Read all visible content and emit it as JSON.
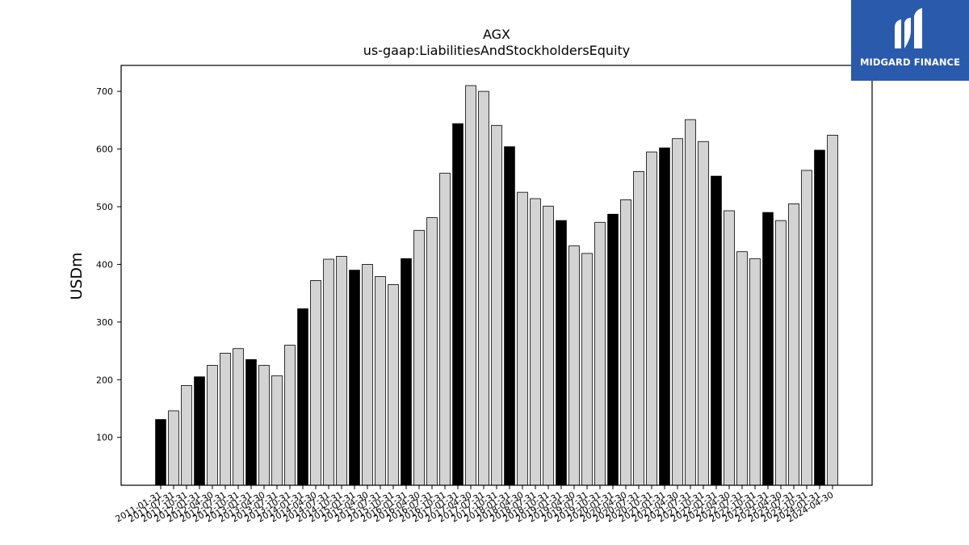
{
  "chart_data": {
    "type": "bar",
    "title": "AGX",
    "subtitle": "us-gaap:LiabilitiesAndStockholdersEquity",
    "xlabel": "",
    "ylabel": "USDm",
    "ylim": [
      17,
      745
    ],
    "yticks": [
      100,
      200,
      300,
      400,
      500,
      600,
      700
    ],
    "grid": false,
    "legend": "none",
    "colors": {
      "annual": "#000000",
      "quarter": "#d3d3d3",
      "edge": "#000000"
    },
    "categories": [
      "2011-01-31",
      "2011-07-31",
      "2011-10-31",
      "2012-01-31",
      "2012-04-30",
      "2012-07-31",
      "2012-10-31",
      "2013-01-31",
      "2013-04-30",
      "2013-07-31",
      "2013-10-31",
      "2014-01-31",
      "2014-04-30",
      "2014-07-31",
      "2014-10-31",
      "2015-01-31",
      "2015-04-30",
      "2015-07-31",
      "2015-10-31",
      "2016-01-31",
      "2016-04-30",
      "2016-07-31",
      "2016-10-31",
      "2017-01-31",
      "2017-04-30",
      "2017-07-31",
      "2017-10-31",
      "2018-01-31",
      "2018-04-30",
      "2018-07-31",
      "2018-10-31",
      "2019-01-31",
      "2019-04-30",
      "2019-07-31",
      "2019-10-31",
      "2020-01-31",
      "2020-04-30",
      "2020-07-31",
      "2020-10-31",
      "2021-01-31",
      "2021-04-30",
      "2021-07-31",
      "2021-10-31",
      "2022-01-31",
      "2022-04-30",
      "2022-07-31",
      "2022-10-31",
      "2023-01-31",
      "2023-04-30",
      "2023-07-31",
      "2023-10-31",
      "2024-01-31",
      "2024-04-30"
    ],
    "values": [
      131,
      146,
      190,
      205,
      225,
      246,
      254,
      235,
      225,
      207,
      260,
      323,
      372,
      409,
      414,
      390,
      400,
      379,
      365,
      410,
      459,
      481,
      558,
      644,
      710,
      700,
      641,
      604,
      525,
      514,
      501,
      476,
      432,
      419,
      473,
      487,
      512,
      561,
      595,
      602,
      618,
      651,
      613,
      553,
      493,
      422,
      410,
      490,
      476,
      505,
      563,
      598,
      624
    ],
    "annual": [
      true,
      false,
      false,
      true,
      false,
      false,
      false,
      true,
      false,
      false,
      false,
      true,
      false,
      false,
      false,
      true,
      false,
      false,
      false,
      true,
      false,
      false,
      false,
      true,
      false,
      false,
      false,
      true,
      false,
      false,
      false,
      true,
      false,
      false,
      false,
      true,
      false,
      false,
      false,
      true,
      false,
      false,
      false,
      true,
      false,
      false,
      false,
      true,
      false,
      false,
      false,
      true,
      false
    ]
  },
  "logo": {
    "text": "MIDGARD FINANCE",
    "bg": "#2a5aab"
  }
}
